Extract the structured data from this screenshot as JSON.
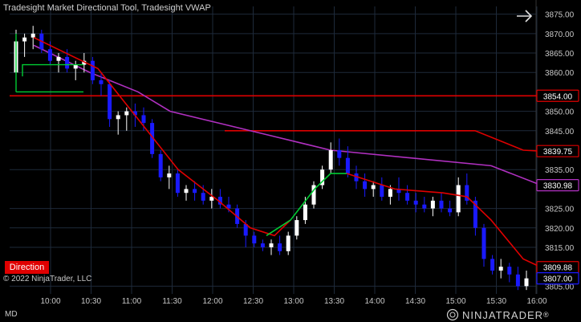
{
  "title": "Tradesight Market Directional Tool, Tradesight VWAP",
  "copyright": "© 2022 NinjaTrader, LLC",
  "direction_button": "Direction",
  "md_label": "MD",
  "brand": "NINJATRADER",
  "brand_suffix": "®",
  "colors": {
    "background": "#000000",
    "grid": "#1e2a3a",
    "candle_up": "#ffffff",
    "candle_down": "#1a1aff",
    "trend_red": "#e00000",
    "trend_green": "#00cc33",
    "vwap": "#b030c0",
    "level_red": "#dd0000"
  },
  "chart_data": {
    "type": "candlestick",
    "y_min": 3803,
    "y_max": 3877,
    "y_ticks": [
      "3875.00",
      "3870.00",
      "3865.00",
      "3860.00",
      "3850.00",
      "3845.00",
      "3840.00",
      "3835.00",
      "3825.00",
      "3820.00",
      "3815.00",
      "3805.00"
    ],
    "x_ticks": [
      "10:00",
      "10:30",
      "11:00",
      "11:30",
      "12:00",
      "12:30",
      "13:00",
      "13:30",
      "14:00",
      "14:30",
      "15:00",
      "15:30",
      "16:00"
    ],
    "price_labels": [
      {
        "value": 3854.0,
        "text": "3854.00",
        "color": "#dd0000"
      },
      {
        "value": 3839.75,
        "text": "3839.75",
        "color": "#dd0000"
      },
      {
        "value": 3830.98,
        "text": "3830.98",
        "color": "#b030c0"
      },
      {
        "value": 3809.88,
        "text": "3809.88",
        "color": "#dd0000"
      },
      {
        "value": 3807.0,
        "text": "3807.00",
        "color": "#1a1aff"
      }
    ],
    "candles": [
      [
        3860,
        3871,
        3855,
        3868
      ],
      [
        3868,
        3870,
        3864,
        3869
      ],
      [
        3869,
        3872,
        3866,
        3870
      ],
      [
        3870,
        3871,
        3865,
        3866
      ],
      [
        3866,
        3868,
        3862,
        3863
      ],
      [
        3863,
        3865,
        3860,
        3864
      ],
      [
        3864,
        3866,
        3860,
        3861
      ],
      [
        3861,
        3863,
        3858,
        3862
      ],
      [
        3862,
        3865,
        3860,
        3863
      ],
      [
        3863,
        3864,
        3857,
        3858
      ],
      [
        3858,
        3860,
        3854,
        3857
      ],
      [
        3857,
        3858,
        3846,
        3848
      ],
      [
        3848,
        3850,
        3844,
        3849
      ],
      [
        3849,
        3851,
        3845,
        3850
      ],
      [
        3850,
        3852,
        3846,
        3849
      ],
      [
        3849,
        3851,
        3845,
        3847
      ],
      [
        3847,
        3848,
        3838,
        3839
      ],
      [
        3839,
        3840,
        3832,
        3833
      ],
      [
        3833,
        3836,
        3830,
        3834
      ],
      [
        3834,
        3835,
        3828,
        3829
      ],
      [
        3829,
        3831,
        3827,
        3830
      ],
      [
        3830,
        3832,
        3827,
        3829
      ],
      [
        3829,
        3831,
        3826,
        3827
      ],
      [
        3827,
        3830,
        3825,
        3828
      ],
      [
        3828,
        3830,
        3825,
        3826
      ],
      [
        3826,
        3828,
        3824,
        3825
      ],
      [
        3825,
        3826,
        3820,
        3821
      ],
      [
        3821,
        3822,
        3815,
        3818
      ],
      [
        3818,
        3819,
        3815,
        3816
      ],
      [
        3816,
        3817,
        3814,
        3815
      ],
      [
        3815,
        3817,
        3813,
        3816
      ],
      [
        3816,
        3818,
        3813,
        3814
      ],
      [
        3814,
        3819,
        3813,
        3818
      ],
      [
        3818,
        3823,
        3817,
        3822
      ],
      [
        3822,
        3828,
        3821,
        3826
      ],
      [
        3826,
        3832,
        3825,
        3831
      ],
      [
        3831,
        3836,
        3830,
        3835
      ],
      [
        3835,
        3842,
        3834,
        3840
      ],
      [
        3840,
        3843,
        3836,
        3838
      ],
      [
        3838,
        3841,
        3833,
        3834
      ],
      [
        3834,
        3836,
        3830,
        3832
      ],
      [
        3832,
        3834,
        3828,
        3830
      ],
      [
        3830,
        3832,
        3828,
        3831
      ],
      [
        3831,
        3833,
        3827,
        3828
      ],
      [
        3828,
        3831,
        3826,
        3830
      ],
      [
        3830,
        3833,
        3827,
        3829
      ],
      [
        3829,
        3831,
        3826,
        3827
      ],
      [
        3827,
        3829,
        3824,
        3826
      ],
      [
        3826,
        3828,
        3824,
        3825
      ],
      [
        3825,
        3828,
        3823,
        3827
      ],
      [
        3827,
        3829,
        3824,
        3825
      ],
      [
        3825,
        3827,
        3823,
        3824
      ],
      [
        3824,
        3833,
        3823,
        3831
      ],
      [
        3831,
        3834,
        3826,
        3827
      ],
      [
        3827,
        3828,
        3818,
        3820
      ],
      [
        3820,
        3821,
        3810,
        3812
      ],
      [
        3812,
        3813,
        3808,
        3809
      ],
      [
        3809,
        3812,
        3807,
        3810
      ],
      [
        3810,
        3811,
        3806,
        3808
      ],
      [
        3808,
        3810,
        3804,
        3805
      ],
      [
        3805,
        3809,
        3804,
        3807
      ]
    ],
    "red_level_1": [
      [
        0,
        3854
      ],
      [
        104,
        3854
      ],
      [
        662,
        3854
      ]
    ],
    "red_level_2": [
      [
        268,
        3845
      ],
      [
        580,
        3845
      ],
      [
        640,
        3840
      ],
      [
        662,
        3839.75
      ]
    ],
    "vwap_line": [
      [
        30,
        3867
      ],
      [
        100,
        3860
      ],
      [
        160,
        3855
      ],
      [
        200,
        3850
      ],
      [
        260,
        3847
      ],
      [
        320,
        3844
      ],
      [
        400,
        3840
      ],
      [
        500,
        3838
      ],
      [
        600,
        3836
      ],
      [
        662,
        3831
      ]
    ],
    "trend_red_line": [
      [
        30,
        3869
      ],
      [
        110,
        3861
      ],
      [
        160,
        3848
      ],
      [
        210,
        3835
      ],
      [
        260,
        3827
      ],
      [
        300,
        3820
      ],
      [
        330,
        3818
      ],
      [
        350,
        3822
      ]
    ],
    "trend_green_line": [
      [
        320,
        3818
      ],
      [
        350,
        3822
      ],
      [
        380,
        3830
      ],
      [
        400,
        3834
      ],
      [
        420,
        3834
      ]
    ],
    "trend_red_line_2": [
      [
        420,
        3834
      ],
      [
        480,
        3830
      ],
      [
        540,
        3829
      ],
      [
        570,
        3828
      ],
      [
        600,
        3822
      ],
      [
        640,
        3812
      ],
      [
        662,
        3809.88
      ]
    ]
  }
}
